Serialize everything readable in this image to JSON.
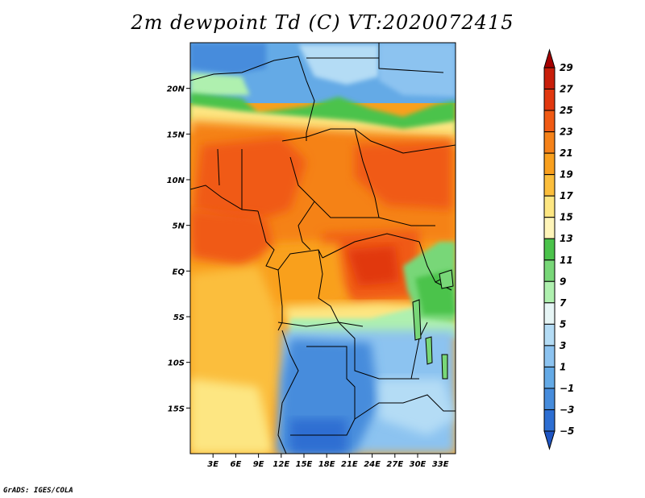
{
  "title": "2m dewpoint Td (C) VT:2020072415",
  "credit": "GrADS: IGES/COLA",
  "map": {
    "lon_range": [
      0,
      35
    ],
    "lat_range": [
      -20,
      25
    ],
    "lat_ticks": [
      {
        "value": 20,
        "label": "20N"
      },
      {
        "value": 15,
        "label": "15N"
      },
      {
        "value": 10,
        "label": "10N"
      },
      {
        "value": 5,
        "label": "5N"
      },
      {
        "value": 0,
        "label": "EQ"
      },
      {
        "value": -5,
        "label": "5S"
      },
      {
        "value": -10,
        "label": "10S"
      },
      {
        "value": -15,
        "label": "15S"
      }
    ],
    "lon_ticks": [
      {
        "value": 3,
        "label": "3E"
      },
      {
        "value": 6,
        "label": "6E"
      },
      {
        "value": 9,
        "label": "9E"
      },
      {
        "value": 12,
        "label": "12E"
      },
      {
        "value": 15,
        "label": "15E"
      },
      {
        "value": 18,
        "label": "18E"
      },
      {
        "value": 21,
        "label": "21E"
      },
      {
        "value": 24,
        "label": "24E"
      },
      {
        "value": 27,
        "label": "27E"
      },
      {
        "value": 30,
        "label": "30E"
      },
      {
        "value": 33,
        "label": "33E"
      }
    ]
  },
  "colorbar": {
    "levels": [
      "29",
      "27",
      "25",
      "23",
      "21",
      "19",
      "17",
      "15",
      "13",
      "11",
      "9",
      "7",
      "5",
      "3",
      "1",
      "−1",
      "−3",
      "−5"
    ],
    "colors": [
      "#a50000",
      "#c81e0a",
      "#e1380f",
      "#f05a14",
      "#f58219",
      "#f9a01e",
      "#fbbe3c",
      "#fde682",
      "#fff5b9",
      "#4bc34b",
      "#78d778",
      "#aff0af",
      "#e6f5f5",
      "#b4dcf5",
      "#8cc3f0",
      "#64aae6",
      "#468cdc",
      "#2d6ed2",
      "#1e55c3"
    ]
  },
  "chart_data": {
    "type": "heatmap",
    "title": "2m dewpoint Td (C) VT:2020072415",
    "variable": "2m dewpoint",
    "units": "C",
    "valid_time": "2020072415",
    "contour_levels": [
      -5,
      -3,
      -1,
      1,
      3,
      5,
      7,
      9,
      11,
      13,
      15,
      17,
      19,
      21,
      23,
      25,
      27,
      29
    ],
    "x_range": [
      0,
      35
    ],
    "y_range": [
      -20,
      25
    ],
    "xlabel": "",
    "ylabel": ""
  }
}
